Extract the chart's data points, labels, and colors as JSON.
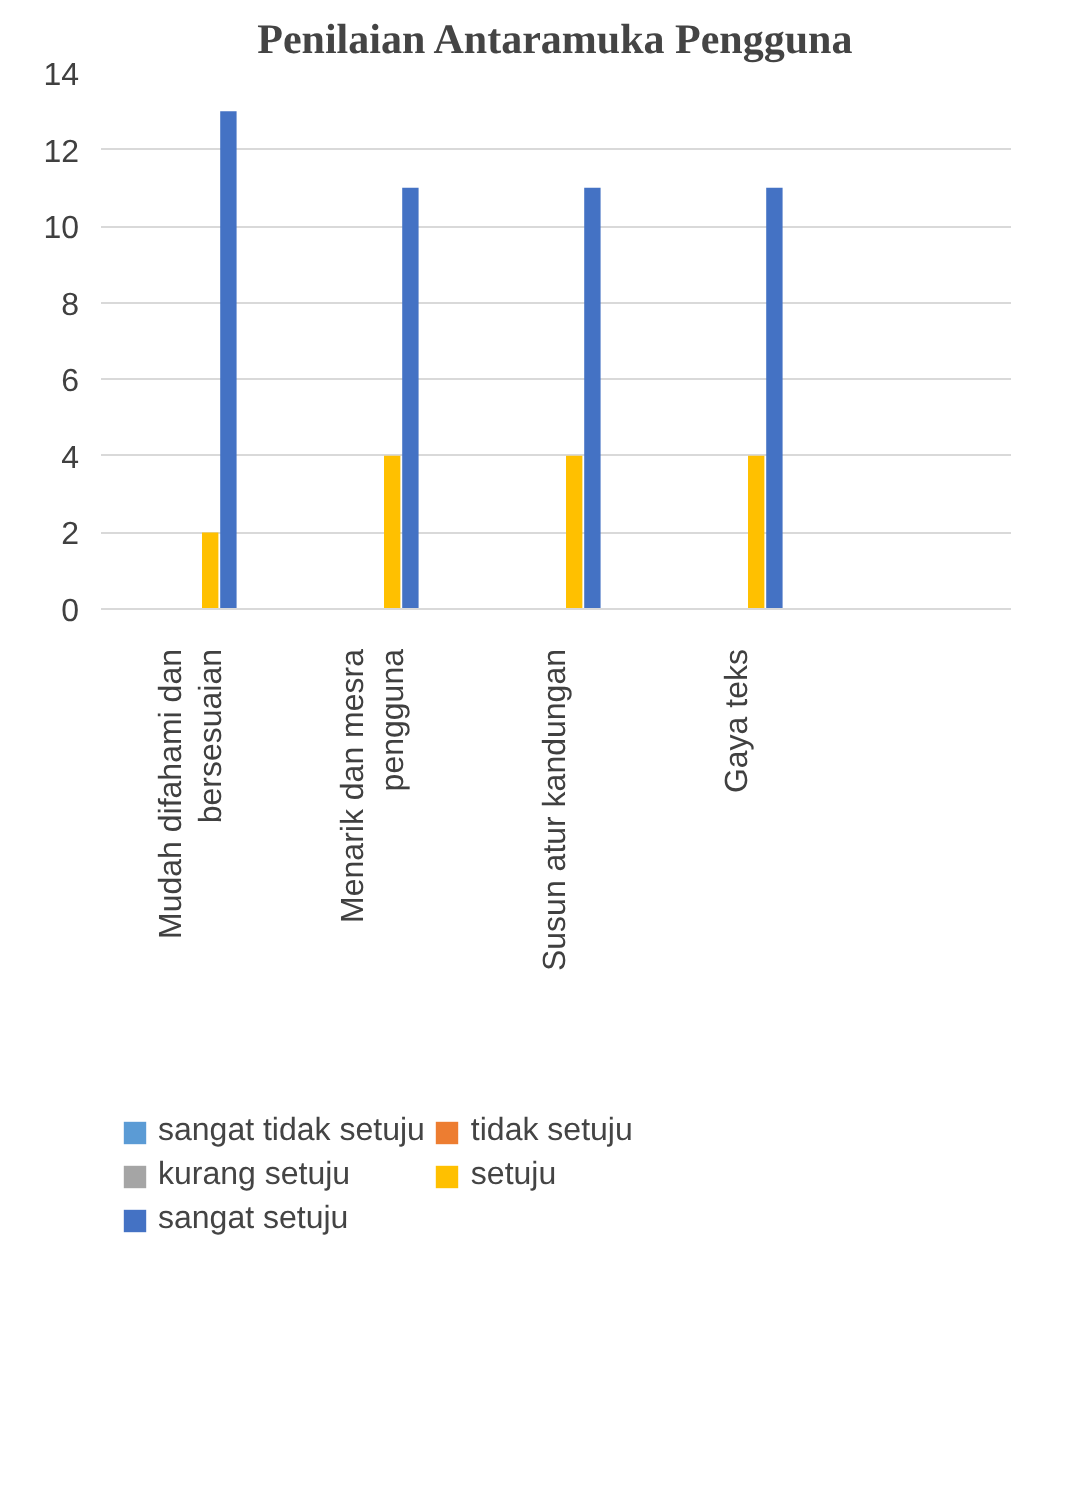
{
  "chart_data": {
    "type": "bar",
    "title": "Penilaian Antaramuka Pengguna",
    "categories": [
      "Mudah difahami dan\nbersesuaian",
      "Menarik dan mesra\npengguna",
      "Susun atur kandungan",
      "Gaya teks",
      null
    ],
    "series": [
      {
        "name": "sangat tidak setuju",
        "color": "#5b9bd5",
        "values": [
          0,
          0,
          0,
          0,
          null
        ]
      },
      {
        "name": "tidak setuju",
        "color": "#ed7d31",
        "values": [
          0,
          0,
          0,
          0,
          null
        ]
      },
      {
        "name": "kurang setuju",
        "color": "#a5a5a5",
        "values": [
          0,
          0,
          0,
          0,
          null
        ]
      },
      {
        "name": "setuju",
        "color": "#ffc000",
        "values": [
          2,
          4,
          4,
          4,
          null
        ]
      },
      {
        "name": "sangat setuju",
        "color": "#4472c4",
        "values": [
          13,
          11,
          11,
          11,
          null
        ]
      }
    ],
    "ylim": [
      0,
      14
    ],
    "yticks": [
      0,
      2,
      4,
      6,
      8,
      10,
      12,
      14
    ],
    "grid": "y",
    "legend": "bottom"
  }
}
